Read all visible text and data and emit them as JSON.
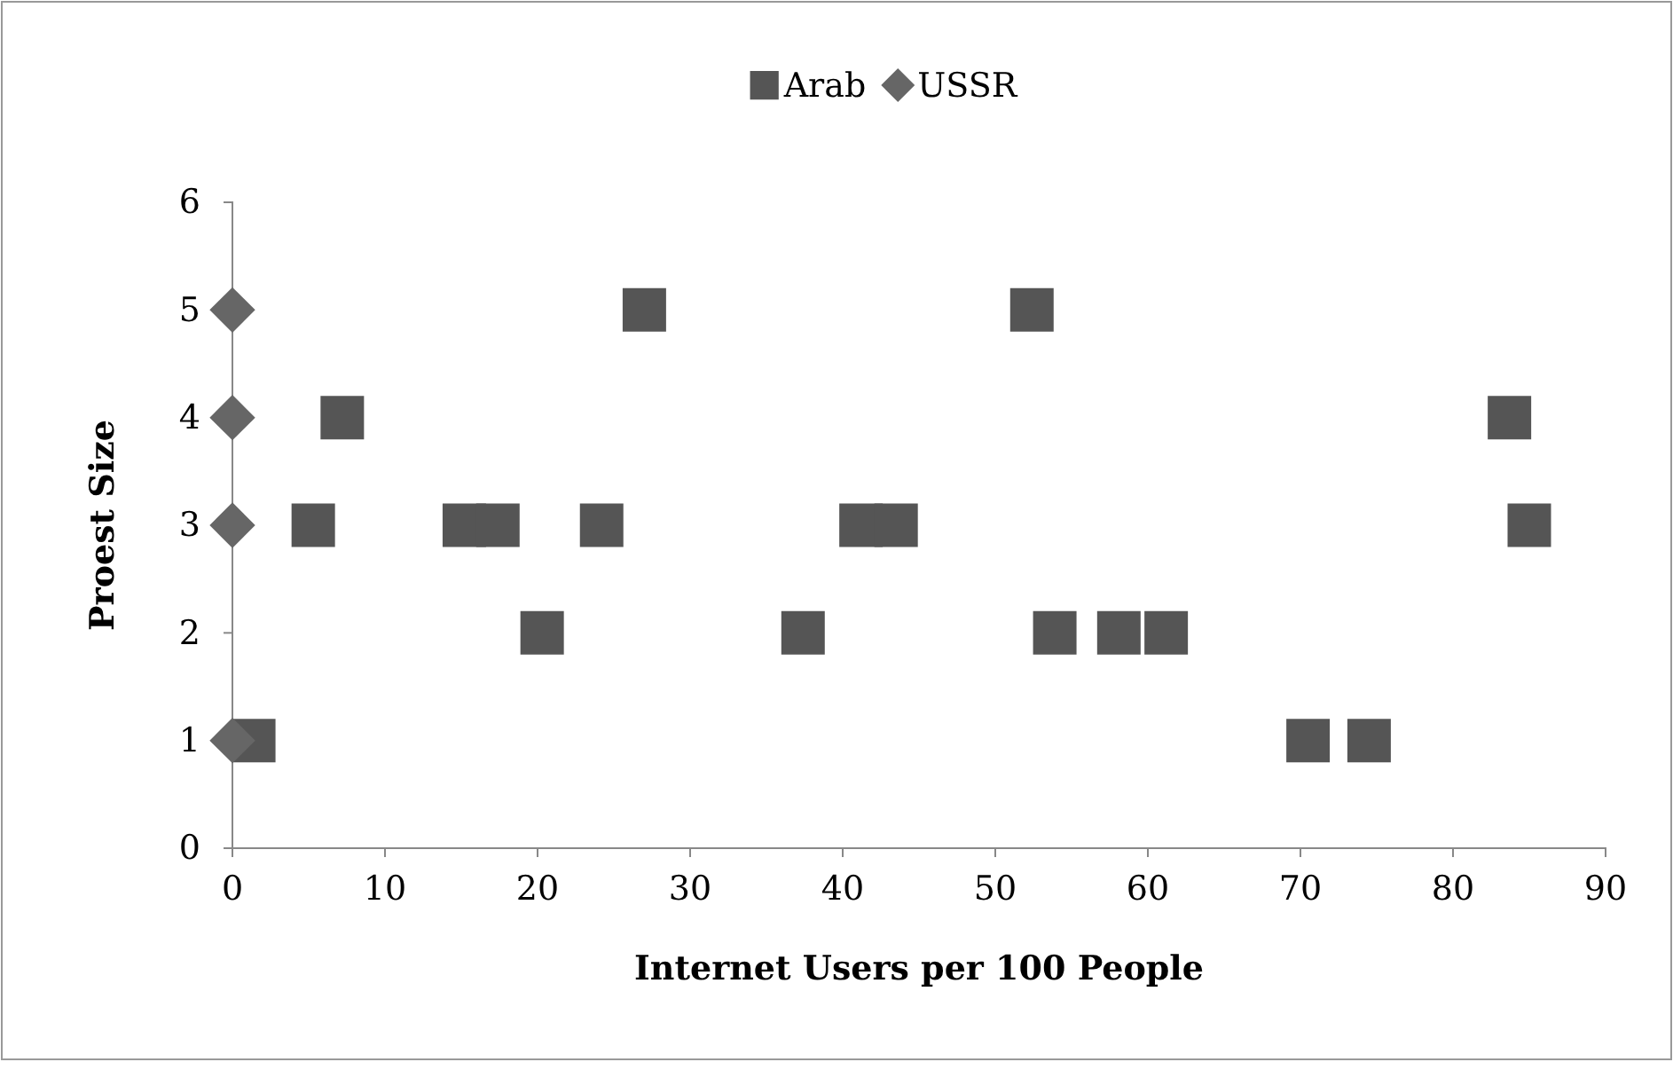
{
  "chart_data": {
    "type": "scatter",
    "xlabel": "Internet Users per 100 People",
    "ylabel": "Proest Size",
    "xlim": [
      0,
      90
    ],
    "xticks": [
      0,
      10,
      20,
      30,
      40,
      50,
      60,
      70,
      80,
      90
    ],
    "ylim": [
      0,
      6
    ],
    "yticks": [
      0,
      1,
      2,
      3,
      4,
      5,
      6
    ],
    "grid": false,
    "legend": "top",
    "series": [
      {
        "name": "Arab",
        "color": "#555555",
        "marker": "square",
        "x": [
          1.4,
          5.3,
          7.2,
          15.2,
          17.4,
          20.3,
          24.2,
          27.0,
          37.4,
          41.2,
          43.5,
          52.4,
          53.9,
          58.1,
          61.2,
          70.5,
          74.5,
          83.7,
          85.0
        ],
        "values": [
          1,
          3,
          4,
          3,
          3,
          2,
          3,
          5,
          2,
          3,
          3,
          5,
          2,
          2,
          2,
          1,
          1,
          4,
          3
        ]
      },
      {
        "name": "USSR",
        "color": "#666666",
        "marker": "diamond",
        "x": [
          0,
          0,
          0,
          0
        ],
        "values": [
          5,
          4,
          3,
          1
        ]
      }
    ]
  }
}
